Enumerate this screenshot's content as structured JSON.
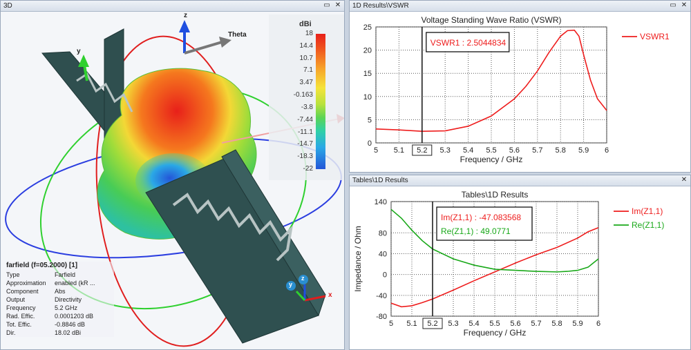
{
  "panel3d": {
    "title": "3D",
    "theta_label": "Theta",
    "axis_x": "x",
    "axis_y": "y",
    "axis_z": "z",
    "mini_axis_y": "y",
    "mini_axis_z": "z",
    "mini_axis_x": "x",
    "scale": {
      "unit": "dBi",
      "ticks": [
        "18",
        "14.4",
        "10.7",
        "7.1",
        "3.47",
        "-0.163",
        "-3.8",
        "-7.44",
        "-11.1",
        "-14.7",
        "-18.3",
        "-22"
      ]
    },
    "info": {
      "title": "farfield (f=05.2000) [1]",
      "rows": [
        {
          "k": "Type",
          "v": "Farfield"
        },
        {
          "k": "Approximation",
          "v": "enabled (kR ..."
        },
        {
          "k": "Component",
          "v": "Abs"
        },
        {
          "k": "Output",
          "v": "Directivity"
        },
        {
          "k": "Frequency",
          "v": "5.2 GHz"
        },
        {
          "k": "Rad. Effic.",
          "v": "0.0001203 dB"
        },
        {
          "k": "Tot. Effic.",
          "v": "-0.8846 dB"
        },
        {
          "k": "Dir.",
          "v": "18.02 dBi"
        }
      ]
    }
  },
  "panelVswr": {
    "title": "1D Results\\VSWR"
  },
  "panelZ": {
    "title": "Tables\\1D Results"
  },
  "window_buttons": {
    "restore": "▭",
    "close": "✕"
  },
  "chart_data": [
    {
      "type": "line",
      "title": "Voltage Standing Wave Ratio (VSWR)",
      "xlabel": "Frequency / GHz",
      "ylabel": "",
      "xlim": [
        5,
        6
      ],
      "ylim": [
        0,
        25
      ],
      "xticks": [
        "5",
        "5.1",
        "5.2",
        "5.3",
        "5.4",
        "5.5",
        "5.6",
        "5.7",
        "5.8",
        "5.9",
        "6"
      ],
      "yticks": [
        "0",
        "5",
        "10",
        "15",
        "20",
        "25"
      ],
      "marker_x": 5.2,
      "marker_label": "5.2",
      "annotation": "VSWR1 : 2.5044834",
      "series": [
        {
          "name": "VSWR1",
          "color": "#ee1c1c",
          "x": [
            5.0,
            5.1,
            5.2,
            5.3,
            5.4,
            5.5,
            5.6,
            5.65,
            5.7,
            5.75,
            5.8,
            5.83,
            5.86,
            5.88,
            5.9,
            5.93,
            5.96,
            6.0
          ],
          "y": [
            3.0,
            2.8,
            2.5,
            2.6,
            3.6,
            5.8,
            9.5,
            12.2,
            15.5,
            19.5,
            23.0,
            24.2,
            24.3,
            23.0,
            19.0,
            13.5,
            9.5,
            7.0
          ]
        }
      ]
    },
    {
      "type": "line",
      "title": "Tables\\1D Results",
      "xlabel": "Frequency / GHz",
      "ylabel": "Impedance / Ohm",
      "xlim": [
        5,
        6
      ],
      "ylim": [
        -80,
        140
      ],
      "xticks": [
        "5",
        "5.1",
        "5.2",
        "5.3",
        "5.4",
        "5.5",
        "5.6",
        "5.7",
        "5.8",
        "5.9",
        "6"
      ],
      "yticks": [
        "-80",
        "-40",
        "0",
        "40",
        "80",
        "140"
      ],
      "marker_x": 5.2,
      "marker_label": "5.2",
      "annotations": [
        "Im(Z1,1) : -47.083568",
        "Re(Z1,1) : 49.0771"
      ],
      "series": [
        {
          "name": "Im(Z1,1)",
          "color": "#ee1c1c",
          "x": [
            5.0,
            5.05,
            5.1,
            5.15,
            5.2,
            5.3,
            5.4,
            5.5,
            5.6,
            5.7,
            5.8,
            5.9,
            5.95,
            6.0
          ],
          "y": [
            -55,
            -62,
            -60,
            -54,
            -47,
            -30,
            -12,
            5,
            22,
            38,
            52,
            70,
            82,
            90
          ]
        },
        {
          "name": "Re(Z1,1)",
          "color": "#18a818",
          "x": [
            5.0,
            5.05,
            5.1,
            5.15,
            5.2,
            5.3,
            5.4,
            5.5,
            5.6,
            5.7,
            5.8,
            5.85,
            5.9,
            5.95,
            6.0
          ],
          "y": [
            125,
            108,
            85,
            65,
            49,
            30,
            18,
            10,
            8,
            6,
            5,
            6,
            8,
            14,
            30
          ]
        }
      ]
    }
  ]
}
